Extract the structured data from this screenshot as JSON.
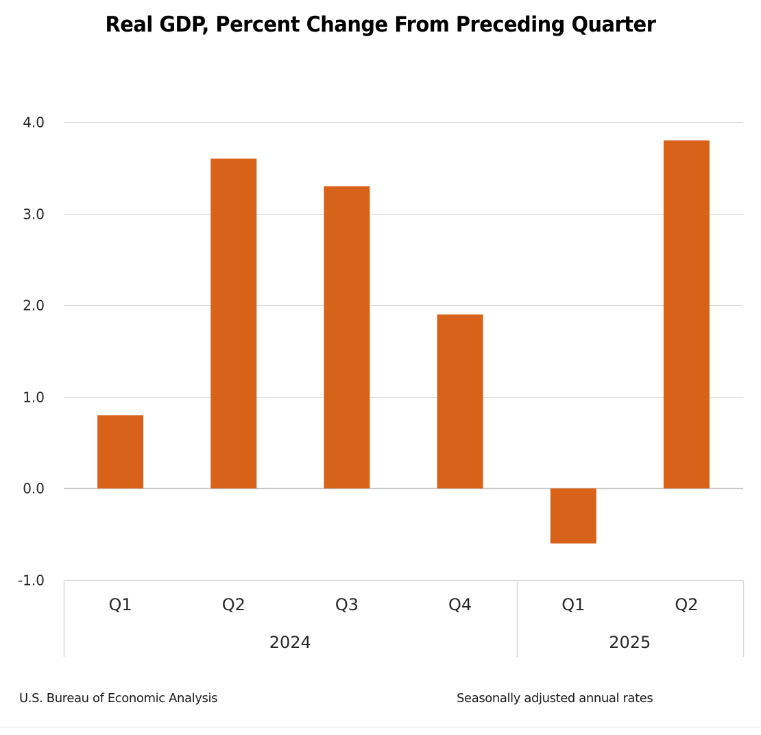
{
  "chart_data": {
    "type": "bar",
    "title": "Real GDP, Percent Change From Preceding Quarter",
    "xlabel": "",
    "ylabel": "",
    "ylim": [
      -1.0,
      4.0
    ],
    "yticks": [
      4.0,
      3.0,
      2.0,
      1.0,
      0.0,
      -1.0
    ],
    "ytick_labels": [
      "4.0",
      "3.0",
      "2.0",
      "1.0",
      "0.0",
      "-1.0"
    ],
    "grid": true,
    "legend": "none",
    "categories": [
      "2024 Q1",
      "2024 Q2",
      "2024 Q3",
      "2024 Q4",
      "2025 Q1",
      "2025 Q2"
    ],
    "category_labels": [
      "Q1",
      "Q2",
      "Q3",
      "Q4",
      "Q1",
      "Q2"
    ],
    "category_groups": [
      {
        "label": "2024",
        "count": 4
      },
      {
        "label": "2025",
        "count": 2
      }
    ],
    "series": [
      {
        "name": "Real GDP percent change",
        "color": "#D9621B",
        "values": [
          0.8,
          3.6,
          3.3,
          1.9,
          -0.6,
          3.8
        ]
      }
    ]
  },
  "footer": {
    "source": "U.S. Bureau of Economic Analysis",
    "note": "Seasonally adjusted annual rates"
  },
  "colors": {
    "bar": "#D9621B",
    "gridline": "#d9d9d9",
    "zero_line": "#c8c8c8",
    "axis_frame": "#d9d9d9",
    "text": "#262626"
  }
}
